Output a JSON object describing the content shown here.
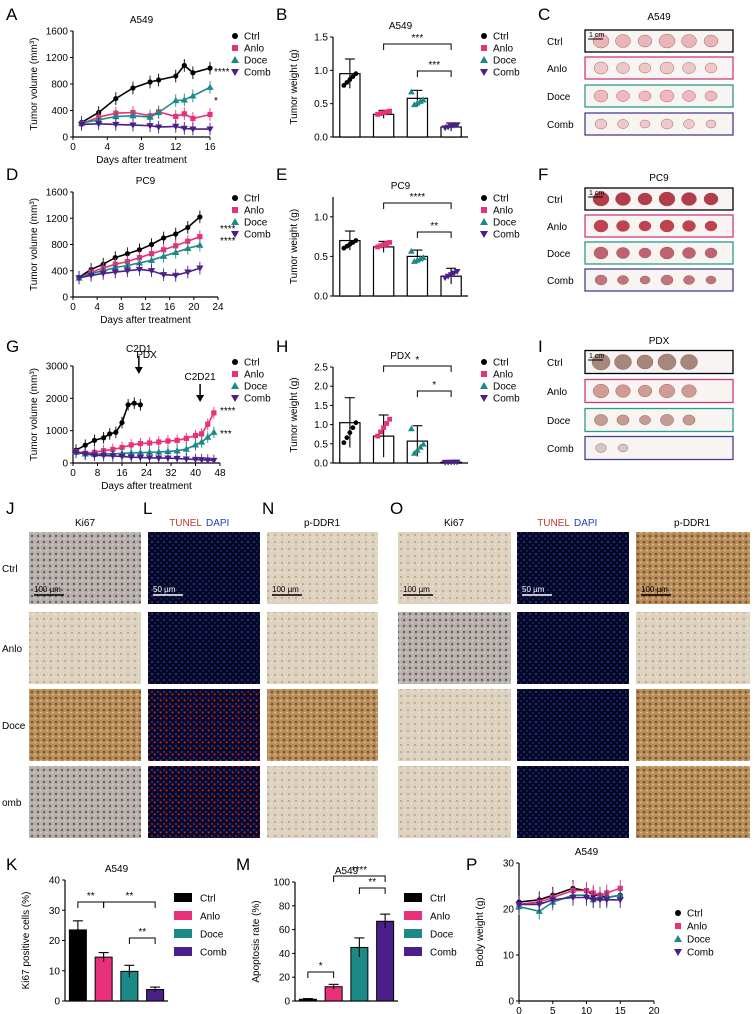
{
  "colors": {
    "Ctrl": "#000000",
    "Anlo": "#e8317a",
    "Doce": "#1b8a86",
    "Comb": "#4b1f8a",
    "A549_ctrl_border": "#000000",
    "anlo_border": "#d03a78",
    "doce_border": "#2a9a8f",
    "comb_border": "#4a3d8f",
    "tunel_text": "#c0392b",
    "dapi_text": "#1f3fbf"
  },
  "legend_labels": [
    "Ctrl",
    "Anlo",
    "Doce",
    "Comb"
  ],
  "chart_data": [
    {
      "panel": "A",
      "type": "line",
      "title": "A549",
      "xlabel": "Days after treatment",
      "ylabel": "Tumor volume (mm³)",
      "xlim": [
        0,
        16
      ],
      "ylim": [
        0,
        1600
      ],
      "xticks": [
        0,
        4,
        8,
        12,
        16
      ],
      "yticks": [
        0,
        400,
        800,
        1200,
        1600
      ],
      "series": [
        {
          "name": "Ctrl",
          "x": [
            1,
            3,
            5,
            7,
            9,
            10,
            12,
            13,
            14,
            16
          ],
          "y": [
            220,
            370,
            580,
            740,
            830,
            860,
            920,
            1080,
            970,
            1040
          ]
        },
        {
          "name": "Anlo",
          "x": [
            1,
            3,
            5,
            7,
            9,
            10,
            12,
            13,
            14,
            16
          ],
          "y": [
            200,
            300,
            360,
            370,
            320,
            380,
            310,
            350,
            280,
            340
          ]
        },
        {
          "name": "Doce",
          "x": [
            1,
            3,
            5,
            7,
            9,
            10,
            12,
            13,
            14,
            16
          ],
          "y": [
            210,
            260,
            310,
            320,
            300,
            370,
            550,
            560,
            620,
            750
          ]
        },
        {
          "name": "Comb",
          "x": [
            1,
            3,
            5,
            7,
            9,
            10,
            12,
            13,
            14,
            16
          ],
          "y": [
            190,
            200,
            190,
            180,
            170,
            150,
            160,
            130,
            120,
            120
          ]
        }
      ],
      "annotations": [
        "****",
        "*"
      ]
    },
    {
      "panel": "B",
      "type": "bar",
      "title": "A549",
      "ylabel": "Tumor weight (g)",
      "ylim": [
        0,
        1.5
      ],
      "yticks": [
        "0.0",
        "0.5",
        "1.0",
        "1.5"
      ],
      "categories": [
        "Ctrl",
        "Anlo",
        "Doce",
        "Comb"
      ],
      "values": [
        0.95,
        0.34,
        0.58,
        0.15
      ],
      "errors": [
        0.22,
        0.06,
        0.12,
        0.06
      ],
      "significance": [
        "***",
        "***"
      ]
    },
    {
      "panel": "D",
      "type": "line",
      "title": "PC9",
      "xlabel": "Days after treatment",
      "ylabel": "Tumor volume (mm³)",
      "xlim": [
        0,
        24
      ],
      "ylim": [
        0,
        1600
      ],
      "xticks": [
        0,
        4,
        8,
        12,
        16,
        20,
        24
      ],
      "yticks": [
        0,
        400,
        800,
        1200,
        1600
      ],
      "series": [
        {
          "name": "Ctrl",
          "x": [
            1,
            3,
            5,
            7,
            9,
            11,
            13,
            15,
            17,
            19,
            21
          ],
          "y": [
            300,
            420,
            500,
            600,
            660,
            720,
            800,
            900,
            960,
            1060,
            1220
          ]
        },
        {
          "name": "Anlo",
          "x": [
            1,
            3,
            5,
            7,
            9,
            11,
            13,
            15,
            17,
            19,
            21
          ],
          "y": [
            290,
            380,
            440,
            500,
            540,
            600,
            660,
            720,
            780,
            850,
            920
          ]
        },
        {
          "name": "Doce",
          "x": [
            1,
            3,
            5,
            7,
            9,
            11,
            13,
            15,
            17,
            19,
            21
          ],
          "y": [
            290,
            360,
            400,
            450,
            480,
            520,
            560,
            620,
            680,
            740,
            790
          ]
        },
        {
          "name": "Comb",
          "x": [
            1,
            3,
            5,
            7,
            9,
            11,
            13,
            15,
            17,
            19,
            21
          ],
          "y": [
            290,
            330,
            360,
            380,
            400,
            420,
            400,
            340,
            330,
            380,
            440
          ]
        }
      ],
      "annotations": [
        "****",
        "****"
      ]
    },
    {
      "panel": "E",
      "type": "bar",
      "title": "PC9",
      "ylabel": "Tumor weight (g)",
      "ylim": [
        0,
        1.25
      ],
      "yticks": [
        "0.0",
        "0.5",
        "1.0"
      ],
      "categories": [
        "Ctrl",
        "Anlo",
        "Doce",
        "Comb"
      ],
      "values": [
        0.7,
        0.62,
        0.5,
        0.25
      ],
      "errors": [
        0.12,
        0.07,
        0.08,
        0.1
      ],
      "significance": [
        "****",
        "**"
      ]
    },
    {
      "panel": "G",
      "type": "line",
      "title": "PDX",
      "xlabel": "Days after treatment",
      "ylabel": "Tumor volume (mm³)",
      "xlim": [
        0,
        48
      ],
      "ylim": [
        0,
        3000
      ],
      "xticks": [
        0,
        8,
        16,
        24,
        32,
        40,
        48
      ],
      "yticks": [
        0,
        1000,
        2000,
        3000
      ],
      "series": [
        {
          "name": "Ctrl",
          "x": [
            1,
            4,
            7,
            10,
            12,
            14,
            16,
            18,
            20,
            22
          ],
          "y": [
            400,
            550,
            700,
            780,
            900,
            950,
            1250,
            1800,
            1850,
            1800
          ]
        },
        {
          "name": "Anlo",
          "x": [
            1,
            4,
            7,
            10,
            13,
            16,
            19,
            22,
            25,
            28,
            31,
            34,
            37,
            40,
            42,
            44,
            46
          ],
          "y": [
            350,
            300,
            330,
            380,
            420,
            480,
            560,
            600,
            620,
            650,
            680,
            700,
            760,
            850,
            900,
            1200,
            1550
          ]
        },
        {
          "name": "Doce",
          "x": [
            1,
            4,
            7,
            10,
            13,
            16,
            19,
            22,
            25,
            28,
            31,
            34,
            37,
            40,
            42,
            44,
            46
          ],
          "y": [
            330,
            280,
            270,
            280,
            280,
            300,
            310,
            320,
            330,
            340,
            360,
            380,
            430,
            560,
            650,
            800,
            950
          ]
        },
        {
          "name": "Comb",
          "x": [
            1,
            4,
            7,
            10,
            13,
            16,
            19,
            22,
            25,
            28,
            31,
            34,
            37,
            40,
            42,
            44,
            46
          ],
          "y": [
            330,
            280,
            240,
            230,
            220,
            200,
            180,
            170,
            160,
            150,
            150,
            140,
            120,
            110,
            100,
            90,
            80
          ]
        }
      ],
      "event_labels": [
        "C2D1",
        "C2D21"
      ],
      "annotations": [
        "****",
        "***"
      ]
    },
    {
      "panel": "H",
      "type": "bar",
      "title": "PDX",
      "ylabel": "Tumor weight (g)",
      "ylim": [
        0,
        2.5
      ],
      "yticks": [
        "0.0",
        "0.5",
        "1.0",
        "1.5",
        "2.0",
        "2.5"
      ],
      "categories": [
        "Ctrl",
        "Anlo",
        "Doce",
        "Comb"
      ],
      "values": [
        1.05,
        0.7,
        0.57,
        0.02
      ],
      "errors": [
        0.65,
        0.55,
        0.4,
        0.01
      ],
      "significance": [
        "*",
        "*"
      ]
    },
    {
      "panel": "K",
      "type": "bar",
      "title": "A549",
      "ylabel": "Ki67 positive cells (%)",
      "ylim": [
        0,
        40
      ],
      "yticks": [
        "0",
        "10",
        "20",
        "30",
        "40"
      ],
      "categories": [
        "Ctrl",
        "Anlo",
        "Doce",
        "Comb"
      ],
      "values": [
        23.5,
        14.5,
        9.8,
        3.8
      ],
      "errors": [
        3.0,
        1.5,
        2.0,
        0.8
      ],
      "significance": [
        "**",
        "**",
        "**"
      ]
    },
    {
      "panel": "M",
      "type": "bar",
      "title": "A549",
      "ylabel": "Apoptosis rate (%)",
      "ylim": [
        0,
        100
      ],
      "yticks": [
        "0",
        "20",
        "40",
        "60",
        "80",
        "100"
      ],
      "categories": [
        "Ctrl",
        "Anlo",
        "Doce",
        "Comb"
      ],
      "values": [
        1.5,
        12,
        45,
        67
      ],
      "errors": [
        0.5,
        2,
        8,
        6
      ],
      "significance": [
        "*",
        "****",
        "**"
      ]
    },
    {
      "panel": "P",
      "type": "line",
      "title": "A549",
      "xlabel": "Days after treatment",
      "ylabel": "Body weight (g)",
      "xlim": [
        0,
        20
      ],
      "ylim": [
        0,
        30
      ],
      "xticks": [
        0,
        5,
        10,
        15,
        20
      ],
      "yticks": [
        0,
        10,
        20,
        30
      ],
      "series": [
        {
          "name": "Ctrl",
          "x": [
            0,
            3,
            5,
            8,
            10,
            11,
            12,
            13,
            15
          ],
          "y": [
            21.5,
            22,
            23,
            24.5,
            24,
            23,
            23,
            22.5,
            23
          ]
        },
        {
          "name": "Anlo",
          "x": [
            0,
            3,
            5,
            8,
            10,
            11,
            12,
            13,
            15
          ],
          "y": [
            21,
            21.5,
            22.5,
            24,
            24,
            23.5,
            23,
            23.5,
            24.5
          ]
        },
        {
          "name": "Doce",
          "x": [
            0,
            3,
            5,
            8,
            10,
            11,
            12,
            13,
            15
          ],
          "y": [
            20.5,
            19.5,
            21.5,
            23,
            23,
            22,
            22.5,
            22.5,
            23
          ]
        },
        {
          "name": "Comb",
          "x": [
            0,
            3,
            5,
            8,
            10,
            11,
            12,
            13,
            15
          ],
          "y": [
            21,
            21,
            22,
            22.5,
            22.5,
            22,
            22,
            22,
            22
          ]
        }
      ]
    }
  ],
  "photo_panels": [
    {
      "panel": "C",
      "title": "A549",
      "rows": [
        "Ctrl",
        "Anlo",
        "Doce",
        "Comb"
      ],
      "counts": [
        6,
        6,
        6,
        6
      ],
      "scale": "1 cm"
    },
    {
      "panel": "F",
      "title": "PC9",
      "rows": [
        "Ctrl",
        "Anlo",
        "Doce",
        "Comb"
      ],
      "counts": [
        6,
        6,
        6,
        6
      ],
      "scale": "1 cm"
    },
    {
      "panel": "I",
      "title": "PDX",
      "rows": [
        "Ctrl",
        "Anlo",
        "Doce",
        "Comb"
      ],
      "counts": [
        5,
        5,
        5,
        2
      ],
      "scale": "1 cm"
    }
  ],
  "micro": {
    "row_labels": [
      "Ctrl",
      "Anlo",
      "Doce",
      "omb"
    ],
    "headers": {
      "J": "Ki67",
      "L_tunel": "TUNEL",
      "L_dapi": "DAPI",
      "N": "p-DDR1",
      "O1": "Ki67",
      "O2_tunel": "TUNEL",
      "O2_dapi": "DAPI",
      "O3": "p-DDR1"
    },
    "scalebars": [
      "100 µm",
      "50 µm",
      "100 µm",
      "100 µm",
      "50 µm",
      "100 µm"
    ]
  },
  "panel_letters": [
    "A",
    "B",
    "C",
    "D",
    "E",
    "F",
    "G",
    "H",
    "I",
    "J",
    "L",
    "N",
    "O",
    "K",
    "M",
    "P"
  ]
}
